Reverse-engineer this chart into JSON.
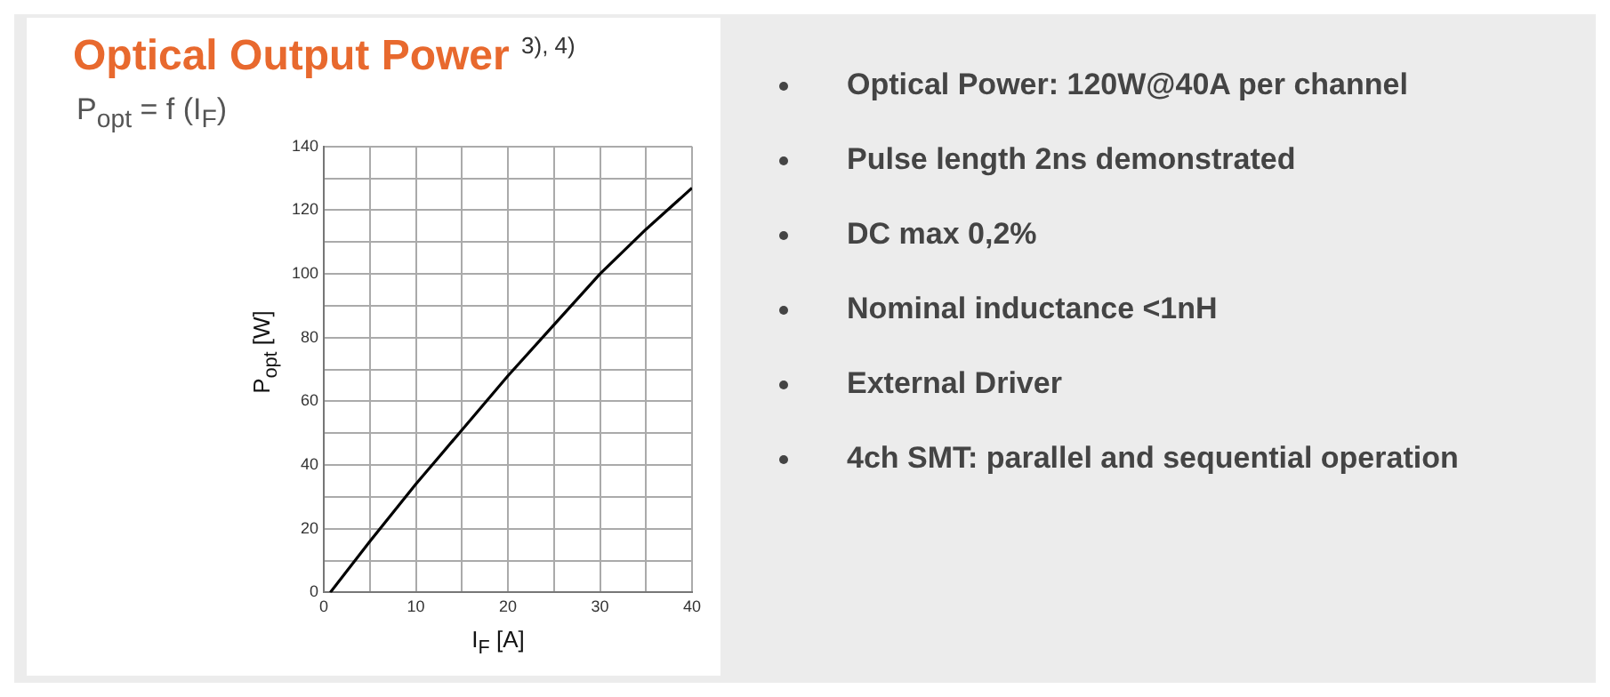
{
  "chart_data": {
    "type": "line",
    "title": "Optical Output Power $^{3), 4)}$",
    "subtitle": "P$_{opt}$ = f (I$_{F}$)",
    "xlabel": "I$_{F}$ [A]",
    "ylabel": "P$_{opt}$ [W]",
    "x": [
      0.7,
      5,
      10,
      15,
      20,
      25,
      30,
      35,
      40
    ],
    "series": [
      {
        "color": "#000000",
        "values": [
          0,
          16,
          34,
          51,
          68,
          84,
          100,
          114,
          127
        ]
      }
    ],
    "xlim": [
      0,
      40
    ],
    "xticks": [
      0,
      {
        "value": 5,
        "label": null
      },
      10,
      {
        "value": 15,
        "label": null
      },
      20,
      {
        "value": 25,
        "label": null
      },
      30,
      {
        "value": 35,
        "label": null
      },
      40
    ],
    "ylim": [
      0,
      140
    ],
    "yticks": [
      0,
      {
        "value": 10,
        "label": null
      },
      20,
      {
        "value": 30,
        "label": null
      },
      40,
      {
        "value": 50,
        "label": null
      },
      60,
      {
        "value": 70,
        "label": null
      },
      80,
      {
        "value": 90,
        "label": null
      },
      100,
      {
        "value": 110,
        "label": null
      },
      120,
      {
        "value": 130,
        "label": null
      },
      140
    ],
    "grid": true,
    "legend": false,
    "marker": "none",
    "line_style": "solid",
    "annotations": [
      "Optical Power: 120W@40A per channel",
      "Pulse length 2ns demonstrated",
      "DC max 0,2%",
      "Nominal inductance <1nH",
      "External Driver",
      "4ch SMT: parallel and sequential operation"
    ]
  }
}
